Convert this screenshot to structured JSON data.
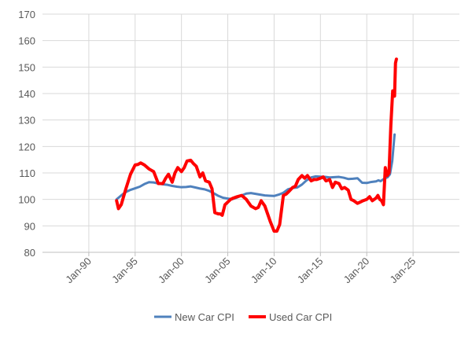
{
  "chart_data": {
    "type": "line",
    "title": "",
    "xlabel": "",
    "ylabel": "",
    "x_axis": {
      "min": 1985,
      "max": 2030,
      "ticks": [
        {
          "label": "Jan-90",
          "value": 1990
        },
        {
          "label": "Jan-95",
          "value": 1995
        },
        {
          "label": "Jan-00",
          "value": 2000
        },
        {
          "label": "Jan-05",
          "value": 2005
        },
        {
          "label": "Jan-10",
          "value": 2010
        },
        {
          "label": "Jan-15",
          "value": 2015
        },
        {
          "label": "Jan-20",
          "value": 2020
        },
        {
          "label": "Jan-25",
          "value": 2025
        }
      ]
    },
    "y_axis": {
      "min": 80,
      "max": 170,
      "ticks": [
        80,
        90,
        100,
        110,
        120,
        130,
        140,
        150,
        160,
        170
      ]
    },
    "grid": true,
    "legend_position": "bottom",
    "series": [
      {
        "name": "New Car CPI",
        "color": "#4f81bd",
        "x": [
          1993.0,
          1993.5,
          1994.0,
          1994.5,
          1995.0,
          1995.5,
          1996.0,
          1996.5,
          1997.0,
          1997.5,
          1998.0,
          1998.5,
          1999.0,
          1999.5,
          2000.0,
          2000.5,
          2001.0,
          2001.5,
          2002.0,
          2002.5,
          2003.0,
          2003.5,
          2004.0,
          2004.5,
          2005.0,
          2005.5,
          2006.0,
          2006.5,
          2007.0,
          2007.5,
          2008.0,
          2008.5,
          2009.0,
          2009.5,
          2010.0,
          2010.5,
          2011.0,
          2011.5,
          2012.0,
          2012.5,
          2013.0,
          2013.5,
          2014.0,
          2014.5,
          2015.0,
          2015.5,
          2016.0,
          2016.5,
          2017.0,
          2017.5,
          2018.0,
          2018.5,
          2019.0,
          2019.5,
          2020.0,
          2020.5,
          2021.0,
          2021.25,
          2021.5,
          2021.75,
          2022.0,
          2022.25,
          2022.5,
          2022.75,
          2023.0
        ],
        "values": [
          100.0,
          101.5,
          102.8,
          103.6,
          104.2,
          104.8,
          105.8,
          106.5,
          106.4,
          106.0,
          105.7,
          105.5,
          105.1,
          104.8,
          104.6,
          104.7,
          104.9,
          104.5,
          104.1,
          103.8,
          103.2,
          102.3,
          101.3,
          100.6,
          100.3,
          100.1,
          100.7,
          101.5,
          102.2,
          102.4,
          102.1,
          101.8,
          101.5,
          101.4,
          101.3,
          101.8,
          102.5,
          103.8,
          104.3,
          104.5,
          105.6,
          107.2,
          108.3,
          108.7,
          108.6,
          108.5,
          108.3,
          108.4,
          108.5,
          108.2,
          107.7,
          107.8,
          108.0,
          106.3,
          106.2,
          106.6,
          106.8,
          107.2,
          106.9,
          107.5,
          108.0,
          108.4,
          109.5,
          114.5,
          124.5
        ]
      },
      {
        "name": "Used Car CPI",
        "color": "#ff0000",
        "x": [
          1993.0,
          1993.2,
          1993.5,
          1994.0,
          1994.5,
          1995.0,
          1995.3,
          1995.6,
          1996.0,
          1996.5,
          1997.0,
          1997.5,
          1998.0,
          1998.3,
          1998.6,
          1999.0,
          1999.3,
          1999.6,
          2000.0,
          2000.3,
          2000.6,
          2001.0,
          2001.3,
          2001.6,
          2002.0,
          2002.3,
          2002.6,
          2003.0,
          2003.3,
          2003.6,
          2004.0,
          2004.2,
          2004.4,
          2004.7,
          2005.0,
          2005.3,
          2005.6,
          2006.0,
          2006.5,
          2007.0,
          2007.5,
          2008.0,
          2008.3,
          2008.6,
          2009.0,
          2009.3,
          2009.6,
          2010.0,
          2010.3,
          2010.6,
          2011.0,
          2011.3,
          2011.6,
          2012.0,
          2012.3,
          2012.6,
          2013.0,
          2013.3,
          2013.6,
          2014.0,
          2014.3,
          2014.6,
          2015.0,
          2015.3,
          2015.6,
          2016.0,
          2016.3,
          2016.6,
          2017.0,
          2017.3,
          2017.6,
          2018.0,
          2018.3,
          2018.6,
          2019.0,
          2019.3,
          2019.6,
          2020.0,
          2020.3,
          2020.6,
          2021.0,
          2021.2,
          2021.4,
          2021.6,
          2021.8,
          2022.0,
          2022.2,
          2022.4,
          2022.6,
          2022.8,
          2023.0,
          2023.1,
          2023.2
        ],
        "values": [
          99.5,
          96.5,
          98.0,
          104.0,
          109.5,
          113.0,
          113.2,
          113.8,
          113.0,
          111.5,
          110.5,
          106.0,
          106.0,
          108.0,
          109.5,
          106.5,
          110.0,
          112.0,
          110.5,
          112.0,
          114.5,
          114.8,
          113.5,
          112.5,
          108.5,
          110.0,
          107.0,
          106.5,
          104.0,
          95.0,
          94.5,
          94.5,
          94.0,
          98.0,
          99.0,
          100.0,
          100.5,
          101.0,
          101.5,
          100.0,
          97.5,
          96.5,
          97.0,
          99.5,
          97.5,
          94.5,
          91.5,
          88.0,
          88.0,
          90.5,
          101.5,
          102.0,
          103.0,
          104.5,
          105.0,
          107.5,
          109.0,
          108.0,
          109.0,
          107.0,
          107.5,
          107.5,
          108.0,
          108.5,
          107.0,
          107.5,
          104.5,
          106.5,
          106.0,
          104.0,
          104.5,
          103.5,
          100.0,
          99.5,
          98.5,
          99.0,
          99.5,
          100.0,
          101.0,
          99.5,
          100.5,
          101.5,
          100.0,
          99.5,
          98.0,
          112.0,
          109.0,
          110.0,
          128.0,
          141.0,
          139.0,
          151.5,
          153.0
        ]
      }
    ]
  }
}
